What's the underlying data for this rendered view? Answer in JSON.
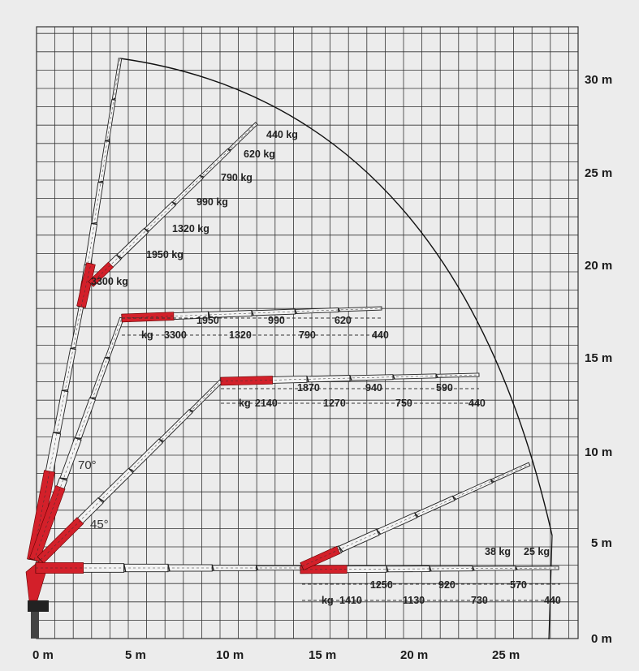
{
  "x_axis": {
    "unit": "m",
    "ticks": [
      {
        "value": 0,
        "label": "0 m"
      },
      {
        "value": 5,
        "label": "5 m"
      },
      {
        "value": 10,
        "label": "10 m"
      },
      {
        "value": 15,
        "label": "15 m"
      },
      {
        "value": 20,
        "label": "20 m"
      },
      {
        "value": 25,
        "label": "25 m"
      }
    ]
  },
  "y_axis": {
    "unit": "m",
    "ticks": [
      {
        "value": 0,
        "label": "0 m"
      },
      {
        "value": 5,
        "label": "5 m"
      },
      {
        "value": 10,
        "label": "10 m"
      },
      {
        "value": 15,
        "label": "15 m"
      },
      {
        "value": 20,
        "label": "20 m"
      },
      {
        "value": 25,
        "label": "25 m"
      },
      {
        "value": 30,
        "label": "30 m"
      }
    ]
  },
  "angles": [
    {
      "label": "70°"
    },
    {
      "label": "45°"
    }
  ],
  "load_groups": [
    {
      "name": "steep-boom",
      "labels": [
        "3300 kg",
        "1950 kg",
        "1320 kg",
        "990 kg",
        "790 kg",
        "620 kg",
        "440 kg"
      ]
    },
    {
      "name": "row-17m",
      "labels": [
        "kg",
        "3300",
        "1950",
        "1320",
        "990",
        "790",
        "620",
        "440"
      ]
    },
    {
      "name": "row-13m",
      "labels": [
        "kg",
        "2140",
        "1870",
        "1270",
        "940",
        "750",
        "590",
        "440"
      ]
    },
    {
      "name": "row-3m",
      "labels": [
        "kg",
        "1410",
        "1250",
        "1130",
        "920",
        "730",
        "570",
        "440"
      ]
    },
    {
      "name": "inclined-low",
      "labels": [
        "38 kg",
        "25 kg"
      ]
    }
  ],
  "colors": {
    "boom_red": "#d3202a",
    "grid": "#333333",
    "background": "#ececec",
    "boom_body": "#f2f2f2"
  }
}
